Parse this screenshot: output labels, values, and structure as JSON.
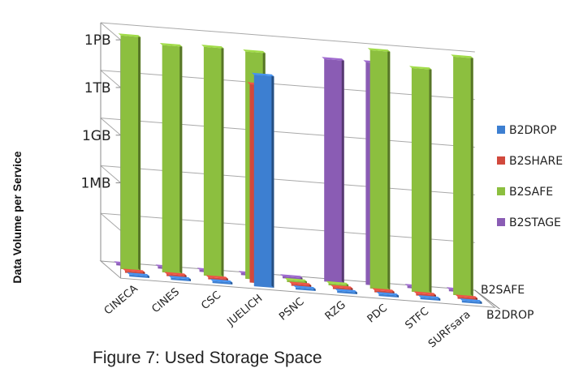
{
  "caption": "Figure 7: Used Storage Space",
  "chart_data": {
    "type": "bar",
    "projection": "3d",
    "ylabel": "Data Volume per Service",
    "y_ticks": [
      "1MB",
      "1GB",
      "1TB",
      "1PB"
    ],
    "y_scale": "log",
    "ylim_bytes": [
      1,
      1000000000000000.0
    ],
    "categories": [
      "CINECA",
      "CINES",
      "CSC",
      "JUELICH",
      "PSNC",
      "RZG",
      "PDC",
      "STFC",
      "SURFsara"
    ],
    "depth_labels": [
      "B2SAFE",
      "B2DROP"
    ],
    "legend_position": "right",
    "series": [
      {
        "name": "B2DROP",
        "color": "#3d7fd1",
        "values": [
          0,
          0,
          0,
          20000000000000.0,
          0,
          0,
          0,
          0,
          0
        ]
      },
      {
        "name": "B2SHARE",
        "color": "#d1493d",
        "values": [
          0,
          0,
          0,
          3000000000000.0,
          0,
          0,
          0,
          0,
          0
        ]
      },
      {
        "name": "B2SAFE",
        "color": "#8cbf3f",
        "values": [
          500000000000000.0,
          200000000000000.0,
          250000000000000.0,
          200000000000000.0,
          0,
          0,
          1000000000000000.0,
          120000000000000.0,
          1200000000000000.0
        ]
      },
      {
        "name": "B2STAGE",
        "color": "#8a5cb4",
        "values": [
          0,
          0,
          0,
          0,
          0,
          100000000000000.0,
          100000000000000.0,
          0,
          0
        ]
      }
    ]
  }
}
